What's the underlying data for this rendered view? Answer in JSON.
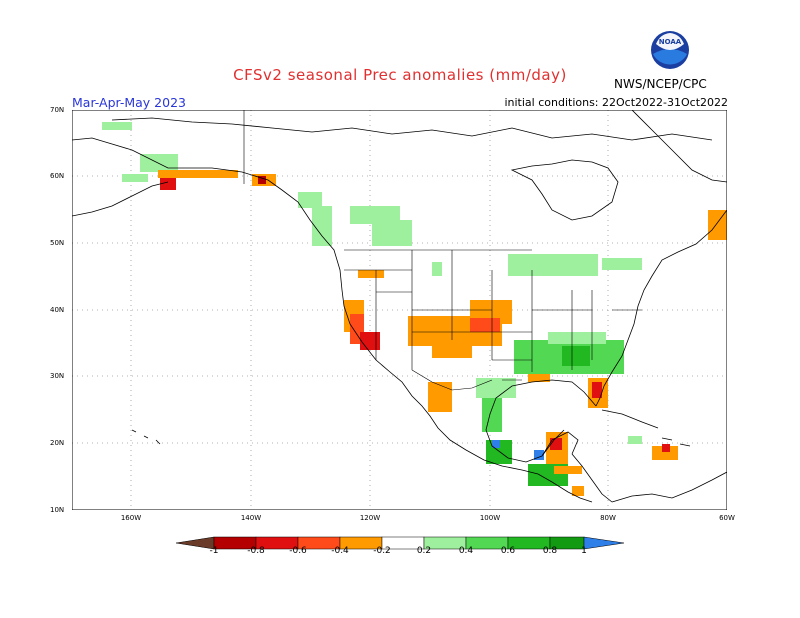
{
  "header": {
    "title": "CFSv2 seasonal Prec anomalies (mm/day)",
    "period": "Mar-Apr-May 2023",
    "initial_conditions": "initial conditions: 22Oct2022-31Oct2022",
    "agency": "NWS/NCEP/CPC",
    "logo_text": "NOAA"
  },
  "axes": {
    "lat_labels": [
      "70N",
      "60N",
      "50N",
      "40N",
      "30N",
      "20N",
      "10N"
    ],
    "lon_labels": [
      "160W",
      "140W",
      "120W",
      "100W",
      "80W",
      "60W"
    ]
  },
  "legend": {
    "labels": [
      "-1",
      "-0.8",
      "-0.6",
      "-0.4",
      "-0.2",
      "0.2",
      "0.4",
      "0.6",
      "0.8",
      "1"
    ],
    "colors": {
      "lt_neg1": "#6b3b2a",
      "neg08": "#b40000",
      "neg06": "#e01010",
      "neg04": "#ff4a1a",
      "neg02": "#ff9a00",
      "pos02": "#9ef09e",
      "pos04": "#52d852",
      "pos06": "#22b822",
      "pos08": "#129a12",
      "gt1": "#2f7fe8"
    }
  }
}
